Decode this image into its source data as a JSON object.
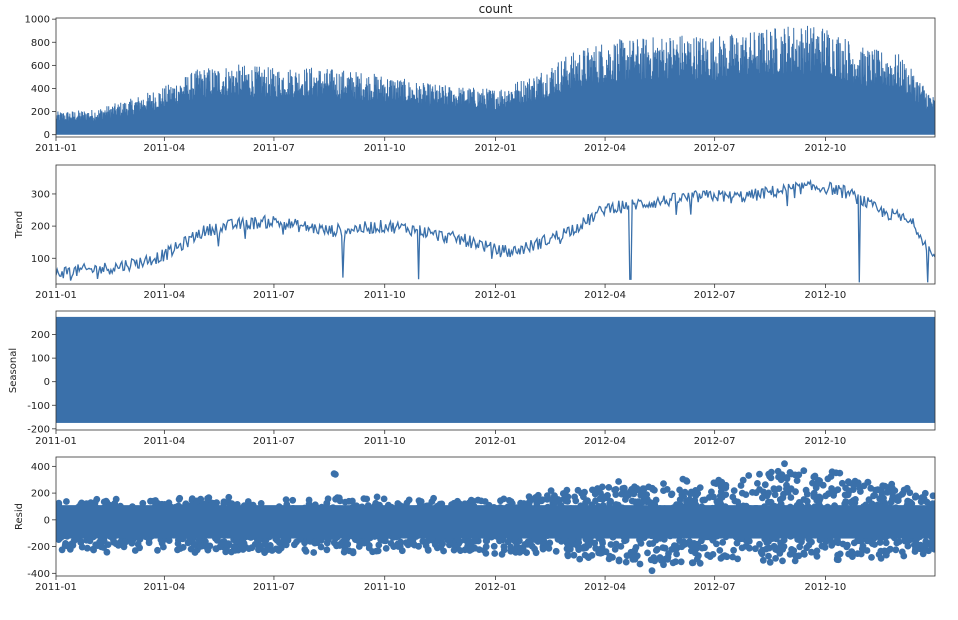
{
  "chart_data": [
    {
      "type": "line",
      "title": "count",
      "ylabel": "",
      "ylim": [
        -20,
        1010
      ],
      "yticks": [
        0,
        200,
        400,
        600,
        800,
        1000
      ],
      "xlim": [
        "2011-01-01",
        "2012-12-31"
      ],
      "xtick_labels": [
        "2011-01",
        "2011-04",
        "2011-07",
        "2011-10",
        "2012-01",
        "2012-04",
        "2012-07",
        "2012-10"
      ],
      "series": [
        {
          "x": [
            "2011-01-01",
            "2011-02-01",
            "2011-03-01",
            "2011-04-01",
            "2011-05-01",
            "2011-06-01",
            "2011-07-01",
            "2011-08-01",
            "2011-09-01",
            "2011-10-01",
            "2011-11-01",
            "2011-12-01",
            "2012-01-01",
            "2012-02-01",
            "2012-03-01",
            "2012-04-01",
            "2012-05-01",
            "2012-06-01",
            "2012-07-01",
            "2012-08-01",
            "2012-09-01",
            "2012-10-01",
            "2012-11-01",
            "2012-12-01",
            "2012-12-31"
          ],
          "upper": [
            200,
            220,
            300,
            420,
            580,
            610,
            580,
            590,
            560,
            520,
            450,
            420,
            400,
            520,
            700,
            820,
            840,
            880,
            860,
            900,
            960,
            950,
            760,
            700,
            320
          ],
          "lower": [
            0,
            0,
            0,
            0,
            0,
            0,
            0,
            0,
            0,
            0,
            0,
            0,
            0,
            0,
            0,
            0,
            0,
            0,
            0,
            0,
            0,
            0,
            0,
            0,
            0
          ]
        }
      ],
      "color": "#3a70aa"
    },
    {
      "type": "line",
      "title": "",
      "ylabel": "Trend",
      "ylim": [
        20,
        390
      ],
      "yticks": [
        100,
        200,
        300
      ],
      "xlim": [
        "2011-01-01",
        "2012-12-31"
      ],
      "xtick_labels": [
        "2011-01",
        "2011-04",
        "2011-07",
        "2011-10",
        "2012-01",
        "2012-04",
        "2012-07",
        "2012-10"
      ],
      "series": [
        {
          "x": [
            "2011-01-01",
            "2011-01-15",
            "2011-02-01",
            "2011-02-15",
            "2011-03-01",
            "2011-03-15",
            "2011-04-01",
            "2011-04-15",
            "2011-05-01",
            "2011-05-15",
            "2011-06-01",
            "2011-06-15",
            "2011-07-01",
            "2011-07-15",
            "2011-08-01",
            "2011-08-15",
            "2011-09-01",
            "2011-09-15",
            "2011-10-01",
            "2011-10-15",
            "2011-11-01",
            "2011-11-15",
            "2011-12-01",
            "2011-12-15",
            "2012-01-01",
            "2012-01-15",
            "2012-02-01",
            "2012-02-15",
            "2012-03-01",
            "2012-03-15",
            "2012-04-01",
            "2012-04-15",
            "2012-05-01",
            "2012-05-15",
            "2012-06-01",
            "2012-06-15",
            "2012-07-01",
            "2012-07-15",
            "2012-08-01",
            "2012-08-15",
            "2012-09-01",
            "2012-09-15",
            "2012-10-01",
            "2012-10-15",
            "2012-11-01",
            "2012-11-15",
            "2012-12-01",
            "2012-12-15",
            "2012-12-31"
          ],
          "values": [
            55,
            60,
            65,
            70,
            80,
            90,
            110,
            140,
            180,
            195,
            205,
            210,
            215,
            205,
            195,
            185,
            190,
            195,
            200,
            195,
            185,
            170,
            160,
            150,
            125,
            120,
            140,
            160,
            185,
            210,
            255,
            265,
            270,
            275,
            285,
            290,
            295,
            290,
            295,
            305,
            315,
            320,
            320,
            310,
            280,
            245,
            230,
            200,
            95
          ],
          "dips": [
            [
              "2011-08-27",
              40
            ],
            [
              "2011-10-29",
              35
            ],
            [
              "2012-04-22",
              35
            ],
            [
              "2012-10-29",
              25
            ],
            [
              "2012-12-25",
              25
            ]
          ]
        }
      ],
      "color": "#3a70aa"
    },
    {
      "type": "area",
      "title": "",
      "ylabel": "Seasonal",
      "ylim": [
        -205,
        300
      ],
      "yticks": [
        -200,
        -100,
        0,
        100,
        200
      ],
      "xlim": [
        "2011-01-01",
        "2012-12-31"
      ],
      "xtick_labels": [
        "2011-01",
        "2011-04",
        "2011-07",
        "2011-10",
        "2012-01",
        "2012-04",
        "2012-07",
        "2012-10"
      ],
      "series": [
        {
          "x": [
            "2011-01-01",
            "2012-12-31"
          ],
          "upper": [
            275,
            275
          ],
          "lower": [
            -175,
            -175
          ]
        }
      ],
      "color": "#3a70aa"
    },
    {
      "type": "scatter",
      "title": "",
      "ylabel": "Resid",
      "ylim": [
        -420,
        470
      ],
      "yticks": [
        -400,
        -200,
        0,
        200,
        400
      ],
      "xlim": [
        "2011-01-01",
        "2012-12-31"
      ],
      "xtick_labels": [
        "2011-01",
        "2011-04",
        "2011-07",
        "2011-10",
        "2012-01",
        "2012-04",
        "2012-07",
        "2012-10"
      ],
      "series": [
        {
          "x": [
            "2011-01-01",
            "2011-03-01",
            "2011-05-01",
            "2011-07-01",
            "2011-09-01",
            "2011-11-01",
            "2012-01-01",
            "2012-03-01",
            "2012-05-01",
            "2012-07-01",
            "2012-09-01",
            "2012-11-01",
            "2012-12-31"
          ],
          "upper": [
            150,
            160,
            180,
            170,
            180,
            170,
            160,
            250,
            320,
            330,
            380,
            350,
            200
          ],
          "lower": [
            -240,
            -250,
            -260,
            -250,
            -250,
            -240,
            -260,
            -300,
            -340,
            -330,
            -330,
            -310,
            -250
          ],
          "outliers": [
            [
              "2011-08-20",
              345
            ],
            [
              "2011-08-21",
              340
            ],
            [
              "2012-08-28",
              420
            ],
            [
              "2012-05-10",
              -380
            ]
          ]
        }
      ],
      "color": "#3a70aa"
    }
  ]
}
